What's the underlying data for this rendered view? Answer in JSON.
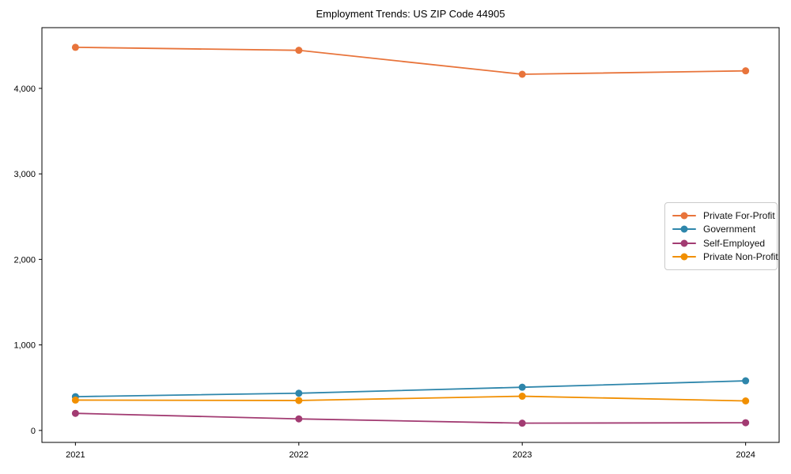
{
  "title": "Employment Trends: US ZIP Code 44905",
  "chart_data": {
    "type": "line",
    "title": "Employment Trends: US ZIP Code 44905",
    "xlabel": "",
    "ylabel": "",
    "x": [
      2021,
      2022,
      2023,
      2024
    ],
    "x_tick_labels": [
      "2021",
      "2022",
      "2023",
      "2024"
    ],
    "y_ticks": [
      0,
      1000,
      2000,
      3000,
      4000
    ],
    "y_tick_labels": [
      "0",
      "1,000",
      "2,000",
      "3,000",
      "4,000"
    ],
    "xlim": [
      2020.85,
      2024.15
    ],
    "ylim": [
      -140,
      4710
    ],
    "grid": false,
    "marker": "circle",
    "legend_position": "center-right",
    "series": [
      {
        "name": "Private For-Profit",
        "color": "#E8743B",
        "values": [
          4480,
          4445,
          4165,
          4205
        ]
      },
      {
        "name": "Government",
        "color": "#2E86AB",
        "values": [
          395,
          435,
          505,
          580
        ]
      },
      {
        "name": "Self-Employed",
        "color": "#A23B72",
        "values": [
          200,
          135,
          85,
          90
        ]
      },
      {
        "name": "Private Non-Profit",
        "color": "#F18F01",
        "values": [
          355,
          350,
          400,
          345
        ]
      }
    ],
    "style": {
      "spine_color": "#000000",
      "tick_label_color": "#000000",
      "background": "#ffffff",
      "legend_border_color": "#cbcbcb",
      "line_width": 1.8,
      "marker_radius": 4.5
    }
  }
}
